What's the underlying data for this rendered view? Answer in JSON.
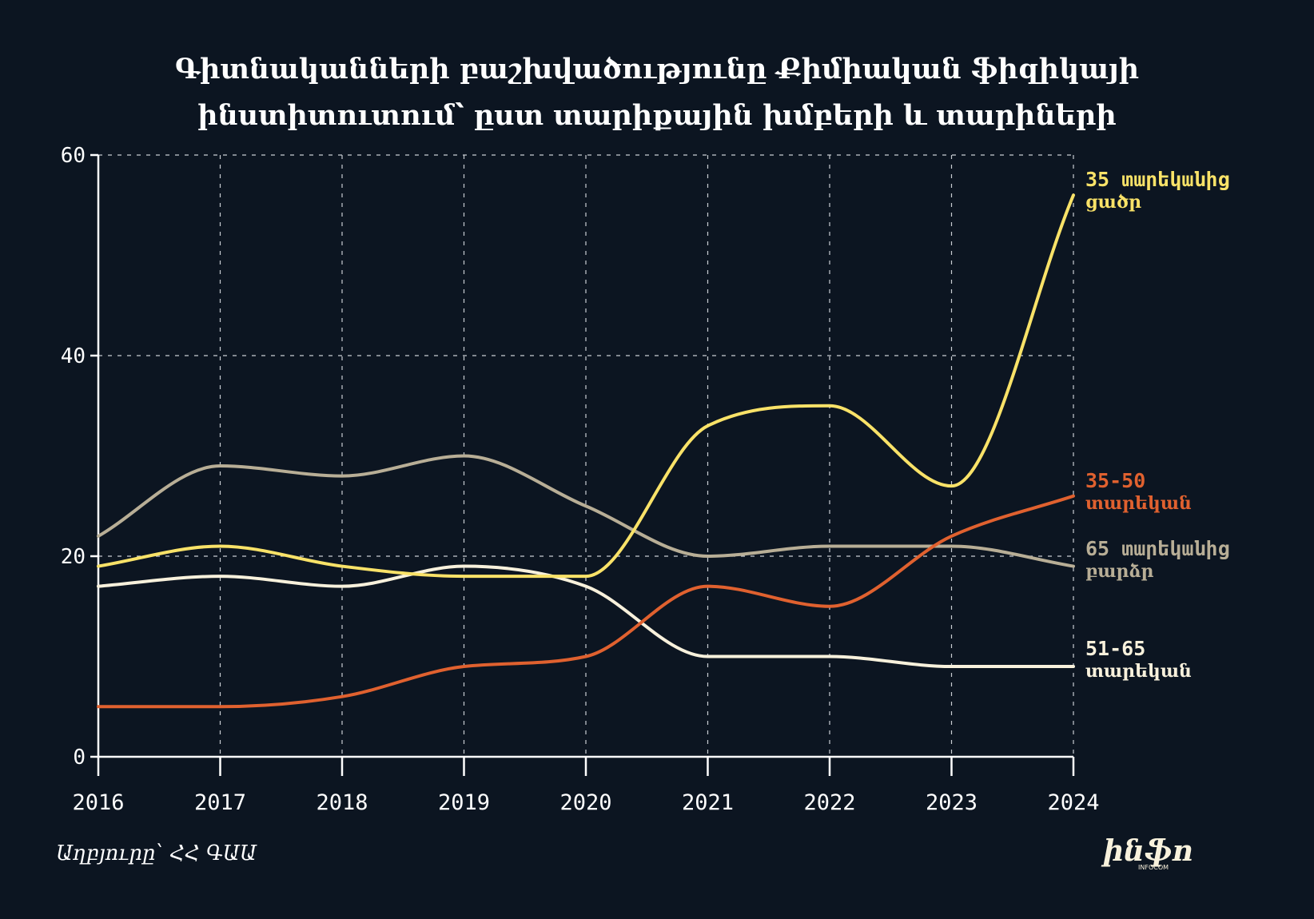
{
  "title": {
    "line1": "Գիտնականների բաշխվածությունը Քիմիական ֆիզիկայի",
    "line2": "ինստիտուտում՝ ըստ տարիքային խմբերի և տարիների"
  },
  "source": "Աղբյուրը՝ ՀՀ ԳԱԱ",
  "logo": {
    "text": "ինֆո",
    "subtext": "INFOCOM"
  },
  "chart_data": {
    "type": "line",
    "x": [
      2016,
      2017,
      2018,
      2019,
      2020,
      2021,
      2022,
      2023,
      2024
    ],
    "ylim": [
      0,
      60
    ],
    "yticks": [
      0,
      20,
      40,
      60
    ],
    "grid": true,
    "legend": "direct labels at right end of lines",
    "series": [
      {
        "name_line1": "65 տարեկանից",
        "name_line2": "բարձր",
        "color": "#b8ae96",
        "values": [
          22,
          29,
          28,
          30,
          25,
          20,
          21,
          21,
          19
        ]
      },
      {
        "name_line1": "51-65",
        "name_line2": "տարեկան",
        "color": "#f8f1dc",
        "values": [
          17,
          18,
          17,
          19,
          17,
          10,
          10,
          9,
          9
        ]
      },
      {
        "name_line1": "35-50",
        "name_line2": "տարեկան",
        "color": "#e0612f",
        "values": [
          5,
          5,
          6,
          9,
          10,
          17,
          15,
          22,
          26
        ]
      },
      {
        "name_line1": "35 տարեկանից",
        "name_line2": "ցածր",
        "color": "#f9e268",
        "values": [
          19,
          21,
          19,
          18,
          18,
          33,
          35,
          27,
          56
        ]
      }
    ]
  }
}
